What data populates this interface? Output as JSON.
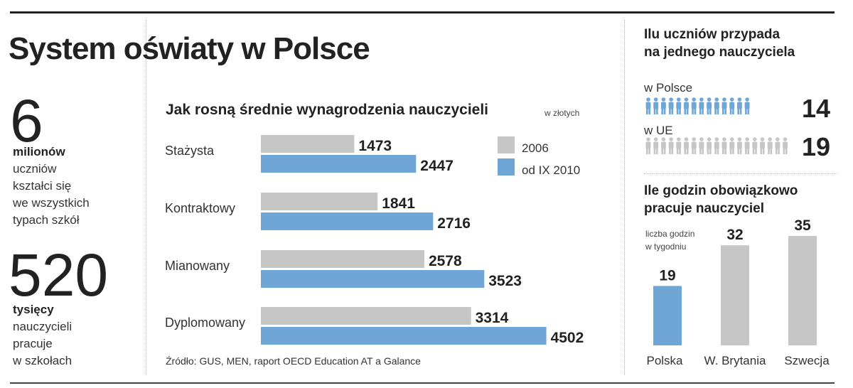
{
  "title": "System oświaty w Polsce",
  "left_stats": {
    "students": {
      "number": "6",
      "unit": "milionów",
      "lines": [
        "uczniów",
        "kształci się",
        "we wszystkich",
        "typach szkół"
      ]
    },
    "teachers": {
      "number": "520",
      "unit": "tysięcy",
      "lines": [
        "nauczycieli",
        "pracuje",
        "w szkołach"
      ]
    }
  },
  "source_note": "Źródło: GUS, MEN, raport OECD Education AT a Galance",
  "colors": {
    "gray": "#c6c6c6",
    "blue": "#6fa6d6",
    "dark": "#222222"
  },
  "chart_data": [
    {
      "type": "bar",
      "orientation": "horizontal",
      "title": "Jak rosną średnie wynagrodzenia nauczycieli",
      "unit_note": "w złotych",
      "categories": [
        "Stażysta",
        "Kontraktowy",
        "Mianowany",
        "Dyplomowany"
      ],
      "series": [
        {
          "name": "2006",
          "color": "#c6c6c6",
          "values": [
            1473,
            1841,
            2578,
            3314
          ]
        },
        {
          "name": "od IX 2010",
          "color": "#6fa6d6",
          "values": [
            2447,
            2716,
            3523,
            4502
          ]
        }
      ],
      "legend_position": "top-right",
      "xlim": [
        0,
        5000
      ],
      "grid": false
    },
    {
      "type": "pictogram",
      "title_lines": [
        "Ilu uczniów przypada",
        "na jednego nauczyciela"
      ],
      "rows": [
        {
          "label": "w Polsce",
          "value": 14,
          "color": "#6fa6d6"
        },
        {
          "label": "w UE",
          "value": 19,
          "color": "#c6c6c6"
        }
      ]
    },
    {
      "type": "bar",
      "orientation": "vertical",
      "title_lines": [
        "Ile godzin obowiązkowo",
        "pracuje nauczyciel"
      ],
      "note_lines": [
        "liczba godzin",
        "w tygodniu"
      ],
      "categories": [
        "Polska",
        "W. Brytania",
        "Szwecja"
      ],
      "values": [
        19,
        32,
        35
      ],
      "colors": [
        "#6fa6d6",
        "#c6c6c6",
        "#c6c6c6"
      ],
      "ylim": [
        0,
        35
      ],
      "grid": false
    }
  ]
}
